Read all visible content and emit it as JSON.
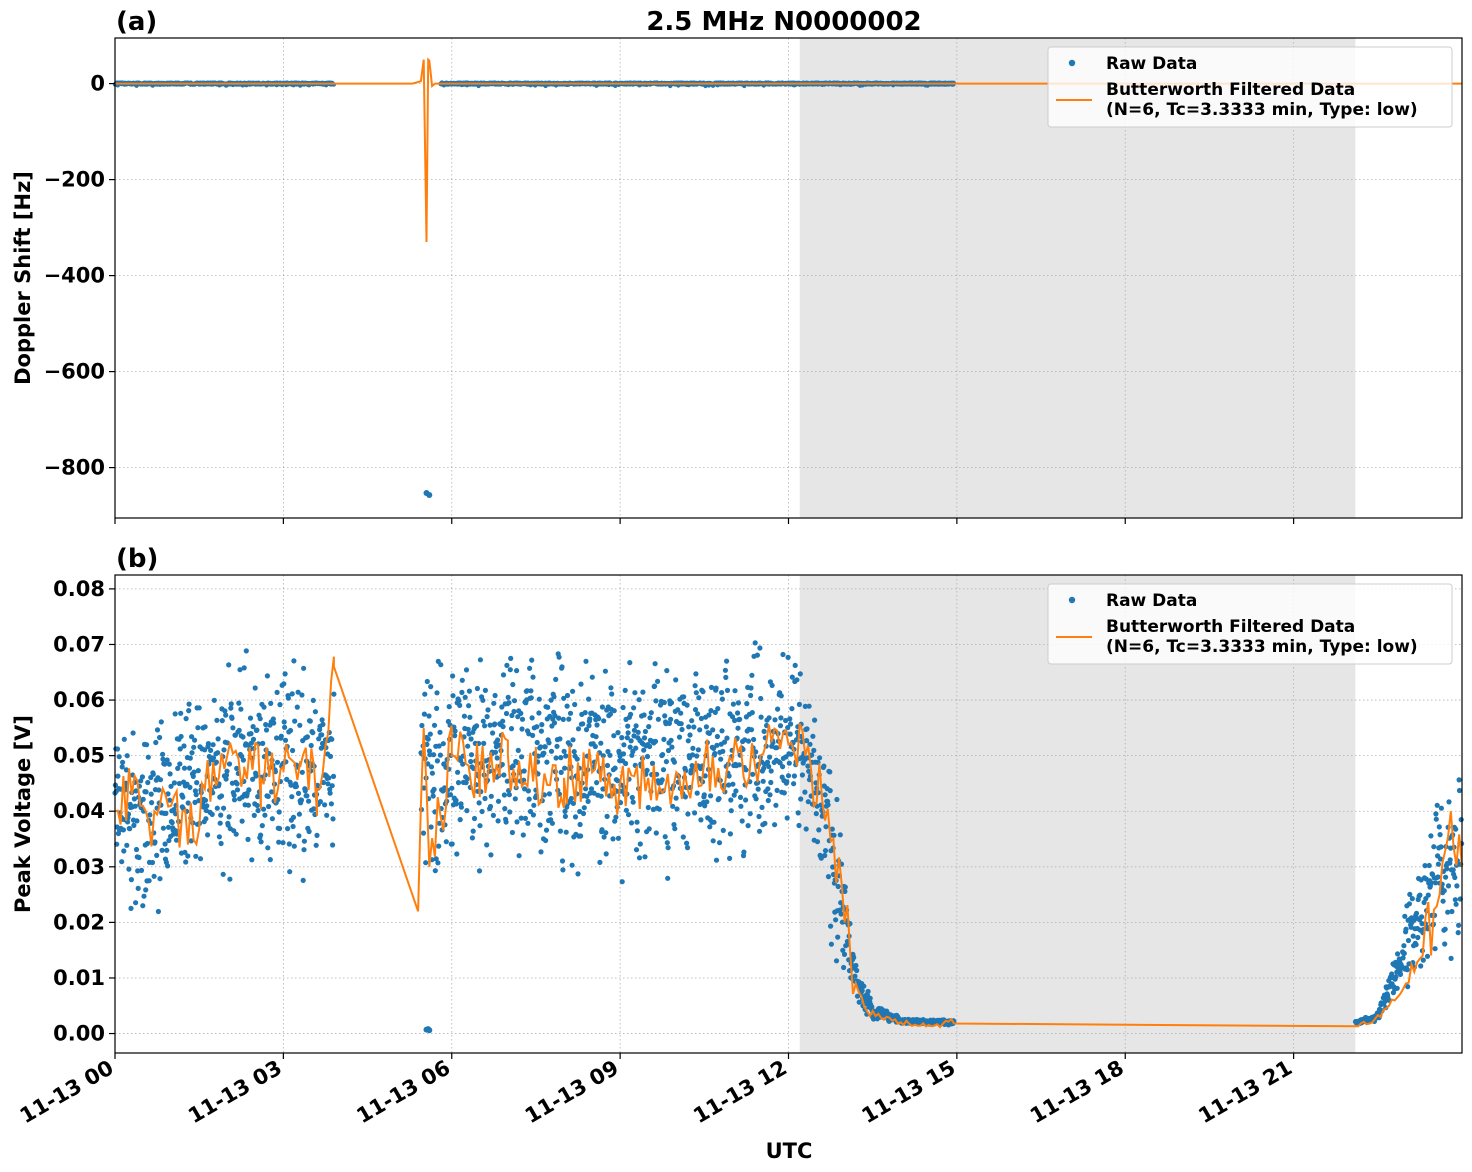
{
  "figure": {
    "title": "2.5 MHz N0000002",
    "xlabel": "UTC",
    "x_tick_labels": [
      "11-13 00",
      "11-13 03",
      "11-13 06",
      "11-13 09",
      "11-13 12",
      "11-13 15",
      "11-13 18",
      "11-13 21"
    ],
    "legend": {
      "raw": "Raw Data",
      "filtered_line1": "Butterworth Filtered Data",
      "filtered_line2": "(N=6, Tc=3.3333 min, Type: low)"
    },
    "colors": {
      "raw": "#1f77b4",
      "filtered": "#ff7f0e",
      "shade": "#e6e6e6",
      "grid": "#b0b0b0"
    }
  },
  "chart_data": [
    {
      "panel_label": "(a)",
      "type": "scatter",
      "ylabel": "Doppler Shift [Hz]",
      "xlim_hours": [
        0,
        24
      ],
      "ylim": [
        -905,
        95
      ],
      "y_ticks": [
        0,
        -200,
        -400,
        -600,
        -800
      ],
      "y_tick_labels": [
        "0",
        "−200",
        "−400",
        "−600",
        "−800"
      ],
      "grid": true,
      "legend_position": "top-right",
      "shaded_interval_hours": [
        12.2,
        22.1
      ],
      "series": [
        {
          "name": "Raw Data",
          "style": "points",
          "segments": [
            {
              "x": [
                0.0,
                3.9
              ],
              "y": 0
            },
            {
              "x": [
                5.8,
                14.95
              ],
              "y": 0
            }
          ],
          "outliers": [
            [
              5.55,
              -853
            ],
            [
              5.6,
              -857
            ]
          ]
        },
        {
          "name": "Butterworth Filtered Data (N=6, Tc=3.3333 min, Type: low)",
          "style": "line",
          "x": [
            0.0,
            5.3,
            5.45,
            5.5,
            5.55,
            5.58,
            5.6,
            5.65,
            5.7,
            24.0
          ],
          "y": [
            0,
            0,
            5,
            50,
            -330,
            50,
            48,
            -5,
            0,
            0
          ]
        }
      ]
    },
    {
      "panel_label": "(b)",
      "type": "scatter",
      "ylabel": "Peak Voltage [V]",
      "xlim_hours": [
        0,
        24
      ],
      "ylim": [
        -0.0035,
        0.0825
      ],
      "y_ticks": [
        0.0,
        0.01,
        0.02,
        0.03,
        0.04,
        0.05,
        0.06,
        0.07,
        0.08
      ],
      "y_tick_labels": [
        "0.00",
        "0.01",
        "0.02",
        "0.03",
        "0.04",
        "0.05",
        "0.06",
        "0.07",
        "0.08"
      ],
      "grid": true,
      "legend_position": "top-right",
      "shaded_interval_hours": [
        12.2,
        22.1
      ],
      "series": [
        {
          "name": "Raw Data",
          "style": "points",
          "envelope_x": [
            0.0,
            0.5,
            1.0,
            1.5,
            2.0,
            2.5,
            3.0,
            3.5,
            3.9,
            5.45,
            5.6,
            6.0,
            7.0,
            8.0,
            9.0,
            10.0,
            11.0,
            11.5,
            12.0,
            12.3,
            12.6,
            12.8,
            13.0,
            13.2,
            13.5,
            14.0,
            14.95,
            22.1,
            22.5,
            23.0,
            23.5,
            24.0
          ],
          "envelope_low": [
            0.018,
            0.016,
            0.02,
            0.022,
            0.024,
            0.026,
            0.025,
            0.024,
            0.026,
            0.028,
            0.02,
            0.026,
            0.024,
            0.025,
            0.025,
            0.024,
            0.026,
            0.03,
            0.032,
            0.03,
            0.02,
            0.012,
            0.006,
            0.003,
            0.002,
            0.0015,
            0.0015,
            0.0015,
            0.002,
            0.006,
            0.01,
            0.012
          ],
          "envelope_high": [
            0.066,
            0.06,
            0.064,
            0.069,
            0.072,
            0.07,
            0.07,
            0.071,
            0.073,
            0.07,
            0.074,
            0.073,
            0.077,
            0.075,
            0.072,
            0.073,
            0.075,
            0.074,
            0.072,
            0.07,
            0.06,
            0.052,
            0.036,
            0.015,
            0.006,
            0.003,
            0.0025,
            0.0025,
            0.004,
            0.025,
            0.045,
            0.057
          ],
          "outliers": [
            [
              5.55,
              0.0007
            ],
            [
              5.58,
              0.0008
            ],
            [
              5.6,
              0.0006
            ]
          ]
        },
        {
          "name": "Butterworth Filtered Data (N=6, Tc=3.3333 min, Type: low)",
          "style": "line",
          "x": [
            0.0,
            0.3,
            0.6,
            1.0,
            1.3,
            1.6,
            2.0,
            2.3,
            2.6,
            3.0,
            3.3,
            3.6,
            3.9,
            5.4,
            5.5,
            5.6,
            6.0,
            6.5,
            7.0,
            7.5,
            8.0,
            8.5,
            9.0,
            9.5,
            10.0,
            10.5,
            11.0,
            11.5,
            12.0,
            12.3,
            12.6,
            12.8,
            13.0,
            13.2,
            13.4,
            13.7,
            14.0,
            14.95,
            22.1,
            22.4,
            22.7,
            23.0,
            23.3,
            23.6,
            23.8,
            24.0
          ],
          "y": [
            0.04,
            0.043,
            0.038,
            0.041,
            0.034,
            0.044,
            0.05,
            0.048,
            0.046,
            0.047,
            0.048,
            0.044,
            0.066,
            0.022,
            0.055,
            0.03,
            0.05,
            0.046,
            0.05,
            0.047,
            0.046,
            0.047,
            0.045,
            0.046,
            0.047,
            0.049,
            0.049,
            0.05,
            0.052,
            0.05,
            0.042,
            0.035,
            0.02,
            0.009,
            0.004,
            0.0025,
            0.002,
            0.0018,
            0.0013,
            0.002,
            0.005,
            0.009,
            0.014,
            0.025,
            0.04,
            0.03
          ]
        }
      ]
    }
  ]
}
